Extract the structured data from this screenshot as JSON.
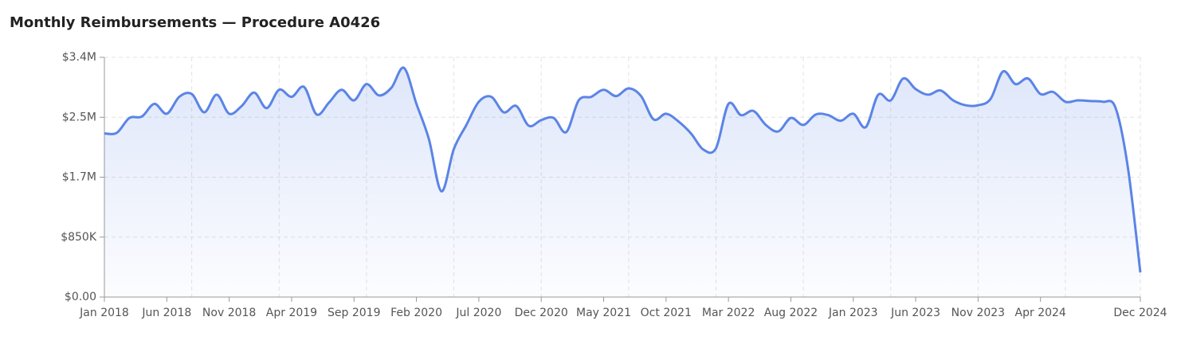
{
  "chart_data": {
    "type": "line",
    "title": "Monthly Reimbursements — Procedure A0426",
    "categories": [
      "Jan 2018",
      null,
      null,
      null,
      null,
      "Jun 2018",
      null,
      null,
      null,
      null,
      "Nov 2018",
      null,
      null,
      null,
      null,
      "Apr 2019",
      null,
      null,
      null,
      null,
      "Sep 2019",
      null,
      null,
      null,
      null,
      "Feb 2020",
      null,
      null,
      null,
      null,
      "Jul 2020",
      null,
      null,
      null,
      null,
      "Dec 2020",
      null,
      null,
      null,
      null,
      "May 2021",
      null,
      null,
      null,
      null,
      "Oct 2021",
      null,
      null,
      null,
      null,
      "Mar 2022",
      null,
      null,
      null,
      null,
      "Aug 2022",
      null,
      null,
      null,
      null,
      "Jan 2023",
      null,
      null,
      null,
      null,
      "Jun 2023",
      null,
      null,
      null,
      null,
      "Nov 2023",
      null,
      null,
      null,
      null,
      "Apr 2024",
      null,
      null,
      null,
      null,
      null,
      null,
      null,
      "Dec 2024"
    ],
    "series": [
      {
        "color": "#5b84e6",
        "values": [
          2320000,
          2330000,
          2540000,
          2560000,
          2740000,
          2600000,
          2840000,
          2880000,
          2620000,
          2870000,
          2600000,
          2710000,
          2900000,
          2680000,
          2940000,
          2840000,
          2980000,
          2590000,
          2760000,
          2940000,
          2790000,
          3020000,
          2860000,
          2970000,
          3250000,
          2740000,
          2240000,
          1500000,
          2100000,
          2440000,
          2770000,
          2840000,
          2620000,
          2710000,
          2430000,
          2510000,
          2540000,
          2340000,
          2790000,
          2840000,
          2940000,
          2850000,
          2960000,
          2850000,
          2520000,
          2600000,
          2490000,
          2320000,
          2090000,
          2110000,
          2740000,
          2580000,
          2640000,
          2440000,
          2350000,
          2540000,
          2440000,
          2590000,
          2580000,
          2500000,
          2600000,
          2410000,
          2870000,
          2790000,
          3100000,
          2950000,
          2870000,
          2930000,
          2790000,
          2720000,
          2720000,
          2810000,
          3200000,
          3020000,
          3100000,
          2880000,
          2910000,
          2770000,
          2790000,
          2780000,
          2770000,
          2690000,
          1840000,
          350000
        ]
      }
    ],
    "ylim": [
      0,
      3400000
    ],
    "yticks": [
      {
        "value": 0,
        "label": "$0.00"
      },
      {
        "value": 850000,
        "label": "$850K"
      },
      {
        "value": 1700000,
        "label": "$1.7M"
      },
      {
        "value": 2550000,
        "label": "$2.5M"
      },
      {
        "value": 3400000,
        "label": "$3.4M"
      }
    ],
    "grid": true
  }
}
